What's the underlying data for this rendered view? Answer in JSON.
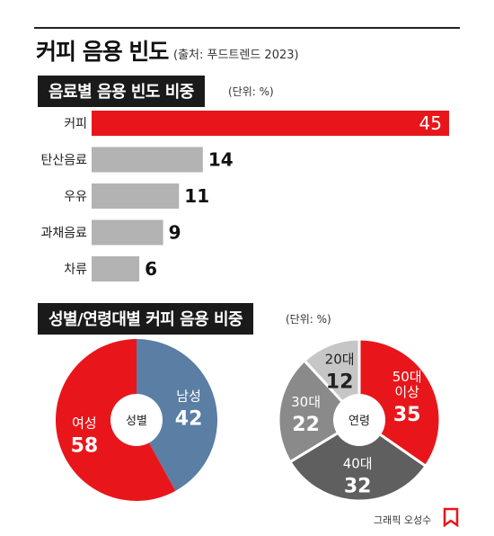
{
  "title": "커피 음용 빈도",
  "source": "(출처: 푸드트렌드 2023)",
  "credit": "그래픽 오성수",
  "colors": {
    "red": "#e8161b",
    "gray": "#b3b3b3",
    "blue": "#5a7ea4",
    "gray_light": "#c6c6c6",
    "gray_mid": "#8a8a8a",
    "gray_dark": "#5f5f5f"
  },
  "chart_data": [
    {
      "type": "bar",
      "title": "음료별 음용 빈도 비중",
      "unit": "(단위: %)",
      "categories": [
        "커피",
        "탄산음료",
        "우유",
        "과채음료",
        "차류"
      ],
      "values": [
        45,
        14,
        11,
        9,
        6
      ],
      "highlight": "커피"
    },
    {
      "type": "pie",
      "title": "성별/연령대별 커피 음용 비중",
      "unit": "(단위: %)",
      "charts": [
        {
          "center_label": "성별",
          "slices": [
            {
              "label": "남성",
              "value": 42,
              "color": "#5a7ea4"
            },
            {
              "label": "여성",
              "value": 58,
              "color": "#e8161b"
            }
          ]
        },
        {
          "center_label": "연령",
          "slices": [
            {
              "label": "50대 이상",
              "value": 35,
              "color": "#e8161b"
            },
            {
              "label": "40대",
              "value": 32,
              "color": "#5f5f5f"
            },
            {
              "label": "30대",
              "value": 22,
              "color": "#8a8a8a"
            },
            {
              "label": "20대",
              "value": 12,
              "color": "#c6c6c6"
            }
          ]
        }
      ]
    }
  ]
}
